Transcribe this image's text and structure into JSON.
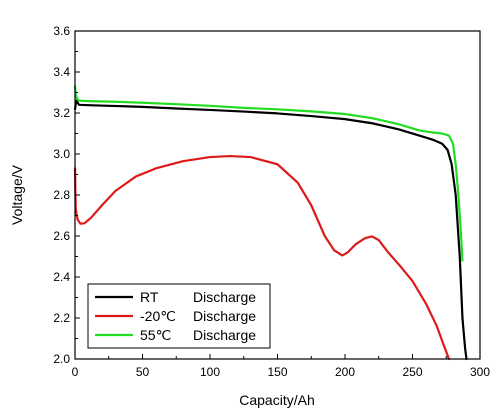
{
  "chart_data": {
    "type": "line",
    "title": "",
    "xlabel": "Capacity/Ah",
    "ylabel": "Voltage/V",
    "xlim": [
      0,
      300
    ],
    "ylim": [
      2.0,
      3.6
    ],
    "xticks": [
      0,
      50,
      100,
      150,
      200,
      250,
      300
    ],
    "yticks": [
      2.0,
      2.2,
      2.4,
      2.6,
      2.8,
      3.0,
      3.2,
      3.4,
      3.6
    ],
    "ytick_labels": [
      "2.0",
      "2.2",
      "2.4",
      "2.6",
      "2.8",
      "3.0",
      "3.2",
      "3.4",
      "3.6"
    ],
    "grid": false,
    "legend_position": "bottom-left",
    "series": [
      {
        "name": "RT",
        "label": "Discharge",
        "color": "#000000",
        "x": [
          0,
          1,
          3,
          10,
          25,
          50,
          75,
          100,
          125,
          150,
          175,
          200,
          220,
          240,
          255,
          265,
          272,
          276,
          279,
          282,
          285,
          287,
          289,
          290
        ],
        "y": [
          3.22,
          3.26,
          3.24,
          3.238,
          3.235,
          3.23,
          3.222,
          3.215,
          3.207,
          3.198,
          3.185,
          3.17,
          3.15,
          3.12,
          3.09,
          3.07,
          3.05,
          3.02,
          2.95,
          2.8,
          2.5,
          2.2,
          2.05,
          2.0
        ]
      },
      {
        "name": "-20℃",
        "label": "Discharge",
        "color": "#dd1a1a",
        "x": [
          0,
          0.5,
          1,
          2,
          4,
          7,
          12,
          20,
          30,
          45,
          60,
          80,
          100,
          115,
          130,
          150,
          165,
          175,
          185,
          192,
          198,
          202,
          208,
          215,
          220,
          225,
          232,
          240,
          250,
          260,
          268,
          273,
          277
        ],
        "y": [
          2.93,
          2.74,
          2.71,
          2.68,
          2.66,
          2.662,
          2.69,
          2.75,
          2.82,
          2.89,
          2.93,
          2.965,
          2.985,
          2.99,
          2.985,
          2.95,
          2.86,
          2.75,
          2.6,
          2.53,
          2.505,
          2.52,
          2.56,
          2.59,
          2.598,
          2.58,
          2.52,
          2.46,
          2.38,
          2.27,
          2.16,
          2.07,
          2.0
        ]
      },
      {
        "name": "55℃",
        "label": "Discharge",
        "color": "#22dd22",
        "x": [
          0,
          0.5,
          1.5,
          3,
          10,
          30,
          50,
          75,
          100,
          125,
          150,
          175,
          200,
          220,
          240,
          255,
          265,
          272,
          277,
          280,
          282,
          284,
          286,
          287
        ],
        "y": [
          3.33,
          3.29,
          3.27,
          3.26,
          3.258,
          3.255,
          3.25,
          3.243,
          3.235,
          3.225,
          3.218,
          3.208,
          3.195,
          3.175,
          3.145,
          3.115,
          3.105,
          3.1,
          3.09,
          3.05,
          2.95,
          2.8,
          2.6,
          2.48
        ]
      }
    ]
  }
}
